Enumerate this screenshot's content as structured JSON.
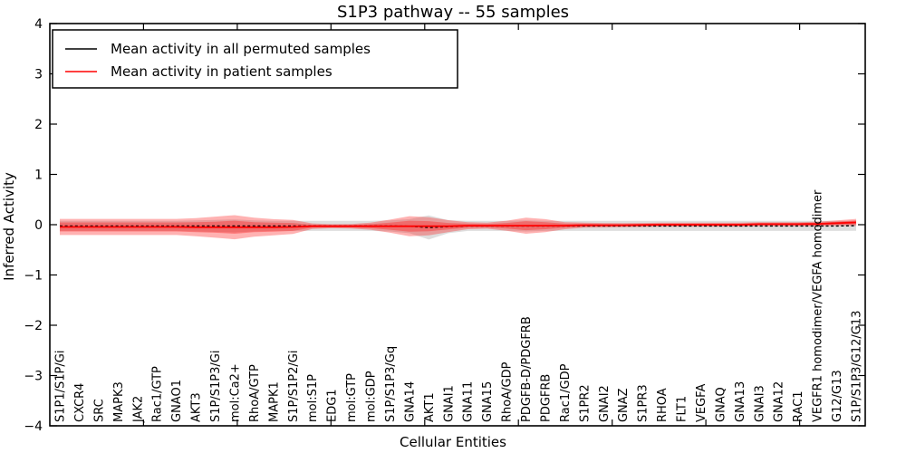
{
  "chart_data": {
    "type": "line",
    "title": "S1P3 pathway -- 55 samples",
    "xlabel": "Cellular Entities",
    "ylabel": "Inferred Activity",
    "ylim": [
      -4,
      4
    ],
    "ytick_labels": [
      "4",
      "3",
      "2",
      "1",
      "0",
      "−1",
      "−2",
      "−3",
      "−4"
    ],
    "ytick_values": [
      4,
      3,
      2,
      1,
      0,
      -1,
      -2,
      -3,
      -4
    ],
    "grid": false,
    "legend_position": "upper left",
    "top_axis_ticks": [
      5,
      10,
      15,
      20,
      25,
      30,
      35,
      40
    ],
    "top_axis_range": [
      0,
      43.5
    ],
    "categories": [
      "S1P1/S1P/Gi",
      "CXCR4",
      "SRC",
      "MAPK3",
      "JAK2",
      "Rac1/GTP",
      "GNAO1",
      "AKT3",
      "S1P/S1P3/Gi",
      "mol:Ca2+",
      "RhoA/GTP",
      "MAPK1",
      "S1P/S1P2/Gi",
      "mol:S1P",
      "EDG1",
      "mol:GTP",
      "mol:GDP",
      "S1P/S1P3/Gq",
      "GNA14",
      "AKT1",
      "GNAI1",
      "GNA11",
      "GNA15",
      "RhoA/GDP",
      "PDGFB-D/PDGFRB",
      "PDGFRB",
      "Rac1/GDP",
      "S1PR2",
      "GNAI2",
      "GNAZ",
      "S1PR3",
      "RHOA",
      "FLT1",
      "VEGFA",
      "GNAQ",
      "GNA13",
      "GNAI3",
      "GNA12",
      "RAC1",
      "VEGFR1 homodimer/VEGFA homodimer",
      "G12/G13",
      "S1P/S1P3/G12/G13"
    ],
    "series": [
      {
        "name": "Mean activity in all permuted samples",
        "color": "#000000",
        "style": "dashed",
        "band_color": "#999999",
        "band_alpha": 0.32,
        "values": [
          -0.025,
          -0.025,
          -0.025,
          -0.025,
          -0.025,
          -0.025,
          -0.025,
          -0.025,
          -0.025,
          -0.025,
          -0.025,
          -0.025,
          -0.025,
          -0.025,
          -0.025,
          -0.025,
          -0.025,
          -0.025,
          -0.03,
          -0.055,
          -0.04,
          -0.025,
          -0.025,
          -0.025,
          -0.025,
          -0.025,
          -0.025,
          -0.025,
          -0.025,
          -0.025,
          -0.025,
          -0.025,
          -0.025,
          -0.025,
          -0.025,
          -0.025,
          -0.025,
          -0.025,
          -0.025,
          -0.025,
          -0.025,
          -0.02
        ],
        "band": [
          0.1,
          0.1,
          0.1,
          0.1,
          0.1,
          0.1,
          0.1,
          0.11,
          0.12,
          0.13,
          0.11,
          0.1,
          0.1,
          0.1,
          0.1,
          0.1,
          0.1,
          0.11,
          0.14,
          0.24,
          0.13,
          0.1,
          0.1,
          0.1,
          0.11,
          0.1,
          0.1,
          0.1,
          0.1,
          0.1,
          0.1,
          0.1,
          0.1,
          0.1,
          0.1,
          0.1,
          0.1,
          0.1,
          0.1,
          0.1,
          0.1,
          0.1
        ]
      },
      {
        "name": "Mean activity in patient samples",
        "color": "#ff0000",
        "style": "solid",
        "band_color": "#ff0000",
        "band_alpha": 0.3,
        "values": [
          -0.045,
          -0.045,
          -0.045,
          -0.045,
          -0.045,
          -0.045,
          -0.045,
          -0.05,
          -0.05,
          -0.05,
          -0.05,
          -0.05,
          -0.045,
          -0.03,
          -0.03,
          -0.03,
          -0.03,
          -0.03,
          -0.03,
          -0.03,
          -0.03,
          -0.02,
          -0.02,
          -0.02,
          -0.02,
          -0.02,
          -0.02,
          -0.01,
          -0.01,
          -0.01,
          -0.005,
          0,
          0,
          0,
          0,
          0,
          0.01,
          0.01,
          0.01,
          0.015,
          0.03,
          0.045
        ],
        "band_outer": [
          0.16,
          0.16,
          0.16,
          0.16,
          0.16,
          0.16,
          0.16,
          0.18,
          0.21,
          0.24,
          0.19,
          0.16,
          0.14,
          0.055,
          0.04,
          0.045,
          0.07,
          0.13,
          0.2,
          0.18,
          0.12,
          0.07,
          0.06,
          0.1,
          0.16,
          0.13,
          0.07,
          0.05,
          0.045,
          0.04,
          0.04,
          0.04,
          0.04,
          0.04,
          0.04,
          0.04,
          0.04,
          0.04,
          0.04,
          0.045,
          0.055,
          0.07
        ],
        "band_inner": [
          0.09,
          0.09,
          0.09,
          0.09,
          0.09,
          0.09,
          0.09,
          0.1,
          0.11,
          0.13,
          0.1,
          0.09,
          0.08,
          0.03,
          0.025,
          0.025,
          0.04,
          0.07,
          0.11,
          0.1,
          0.065,
          0.04,
          0.035,
          0.055,
          0.09,
          0.07,
          0.04,
          0.03,
          0.025,
          0.022,
          0.022,
          0.022,
          0.022,
          0.022,
          0.022,
          0.022,
          0.022,
          0.022,
          0.022,
          0.025,
          0.03,
          0.04
        ]
      }
    ]
  }
}
